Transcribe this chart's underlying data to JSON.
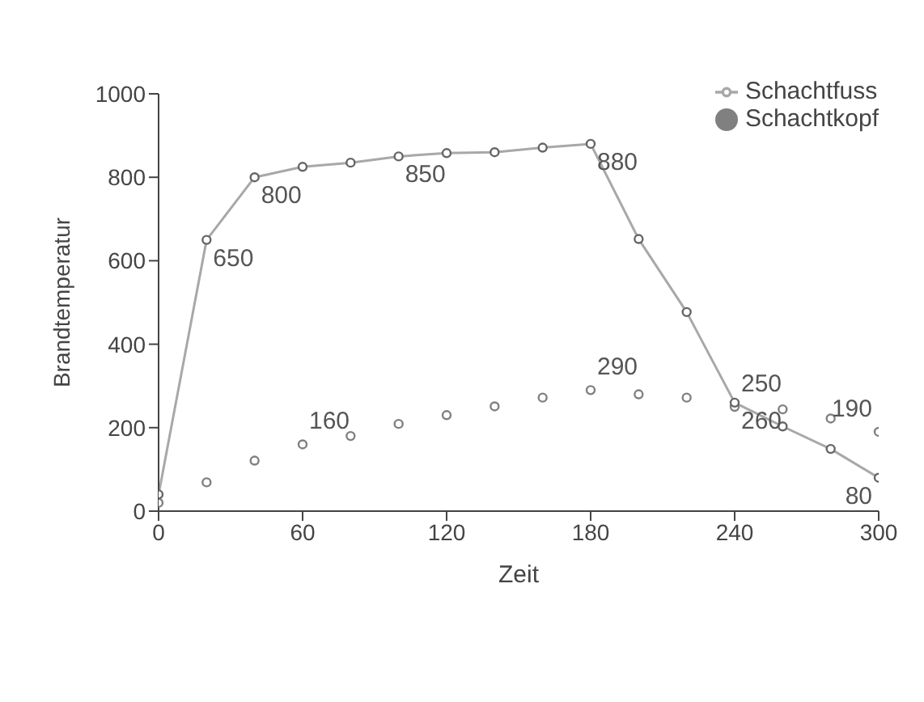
{
  "chart_data": {
    "type": "line",
    "xlabel": "Zeit",
    "ylabel": "Brandtemperatur",
    "x": [
      0,
      20,
      40,
      60,
      80,
      100,
      120,
      140,
      160,
      180,
      200,
      220,
      240,
      260,
      280,
      300
    ],
    "xlim": [
      0,
      300
    ],
    "xticks": [
      0,
      60,
      120,
      180,
      240,
      300
    ],
    "ylim": [
      0,
      1000
    ],
    "yticks": [
      0,
      200,
      400,
      600,
      800,
      1000
    ],
    "grid": false,
    "legend": "top right",
    "marker": "circle",
    "series": [
      {
        "name": "Schachtfuss",
        "color": "#a8a8a8",
        "values": [
          40,
          650,
          800,
          825,
          835,
          850,
          858,
          860,
          871,
          880,
          652,
          477,
          260,
          203,
          149,
          80
        ],
        "value_labels": [
          null,
          "650",
          "800",
          null,
          null,
          "850",
          null,
          null,
          null,
          "880",
          null,
          null,
          "260",
          null,
          null,
          "80"
        ]
      },
      {
        "name": "Schachtkopf",
        "type": "scatter",
        "color": "#808080",
        "values": [
          20,
          69,
          121,
          160,
          180,
          209,
          230,
          251,
          272,
          290,
          280,
          272,
          250,
          244,
          222,
          190
        ],
        "value_labels": [
          null,
          null,
          null,
          "160",
          null,
          null,
          null,
          null,
          null,
          "290",
          null,
          null,
          "250",
          null,
          null,
          "190"
        ]
      }
    ]
  }
}
